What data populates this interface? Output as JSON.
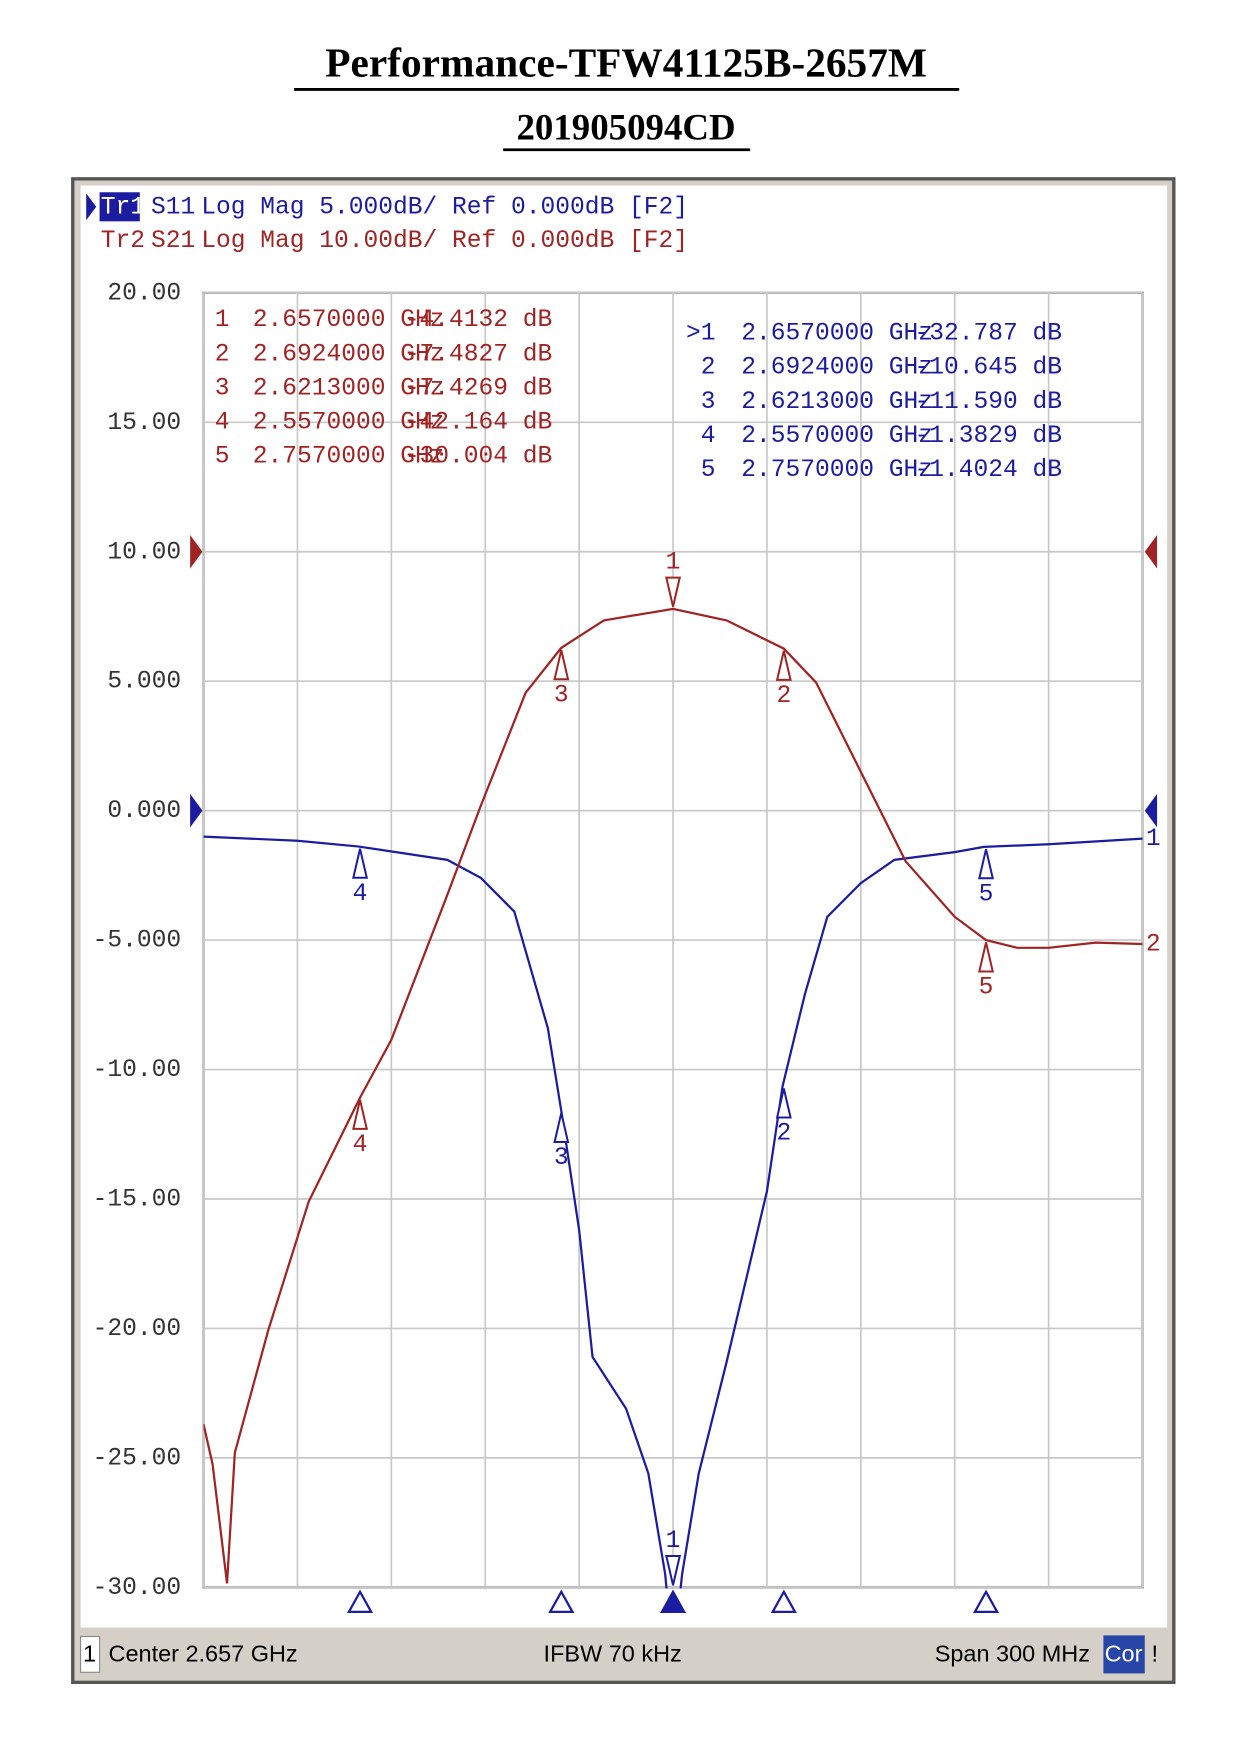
{
  "title": "Performance-TFW41125B-2657M",
  "subtitle": "201905094CD",
  "chart_data": {
    "type": "line",
    "xlim": [
      2.507,
      2.807
    ],
    "xticks": [
      2.507,
      2.537,
      2.567,
      2.597,
      2.627,
      2.657,
      2.687,
      2.717,
      2.747,
      2.777,
      2.807
    ],
    "ylim": [
      -30,
      20
    ],
    "yticks": [
      {
        "value": 20,
        "label": "20.00"
      },
      {
        "value": 15,
        "label": "15.00"
      },
      {
        "value": 10,
        "label": "10.00"
      },
      {
        "value": 5,
        "label": "5.000"
      },
      {
        "value": 0,
        "label": "0.000"
      },
      {
        "value": -5,
        "label": "-5.000"
      },
      {
        "value": -10,
        "label": "-10.00"
      },
      {
        "value": -15,
        "label": "-15.00"
      },
      {
        "value": -20,
        "label": "-20.00"
      },
      {
        "value": -25,
        "label": "-25.00"
      },
      {
        "value": -30,
        "label": "-30.00"
      }
    ],
    "y2lim": [
      -80,
      20
    ],
    "grid": true,
    "series": [
      {
        "tag": "Tr1",
        "name": "S11",
        "format": "Log Mag 5.000dB/ Ref 0.000dB [F2]",
        "color": "#1c1ca0",
        "axis": "y",
        "ref_level": 0,
        "end_label": "1",
        "active": true,
        "x": [
          2.507,
          2.537,
          2.5563,
          2.5849,
          2.5956,
          2.6063,
          2.617,
          2.6213,
          2.627,
          2.6313,
          2.642,
          2.6491,
          2.6545,
          2.657,
          2.6599,
          2.6652,
          2.6741,
          2.687,
          2.692,
          2.6991,
          2.7063,
          2.717,
          2.7277,
          2.747,
          2.7563,
          2.777,
          2.807
        ],
        "values": [
          -1.0,
          -1.16,
          -1.38,
          -1.9,
          -2.6,
          -3.9,
          -8.4,
          -11.59,
          -16.2,
          -21.1,
          -23.1,
          -25.6,
          -29.5,
          -32.787,
          -29.5,
          -25.6,
          -21.3,
          -14.7,
          -10.645,
          -7.1,
          -4.1,
          -2.8,
          -1.9,
          -1.6,
          -1.4,
          -1.3,
          -1.08
        ],
        "markers": {
          "labels": [
            "1",
            "2",
            "3",
            "4",
            "5"
          ],
          "active_label": ">1",
          "x": [
            2.657,
            2.6924,
            2.6213,
            2.557,
            2.757
          ],
          "x_labels": [
            "2.6570000 GHz",
            "2.6924000 GHz",
            "2.6213000 GHz",
            "2.5570000 GHz",
            "2.7570000 GHz"
          ],
          "values": [
            -32.787,
            -10.645,
            -11.59,
            -1.3829,
            -1.4024
          ],
          "value_labels": [
            "-32.787 dB",
            "-10.645 dB",
            "-11.590 dB",
            "-1.3829 dB",
            "-1.4024 dB"
          ]
        }
      },
      {
        "tag": "Tr2",
        "name": "S21",
        "format": "Log Mag 10.00dB/ Ref 0.000dB [F2]",
        "color": "#a02424",
        "axis": "y2",
        "ref_level": 0,
        "end_label": "2",
        "active": false,
        "x": [
          2.507,
          2.5099,
          2.5145,
          2.517,
          2.5277,
          2.5406,
          2.557,
          2.567,
          2.5849,
          2.5956,
          2.6099,
          2.6213,
          2.6349,
          2.657,
          2.6741,
          2.6924,
          2.7027,
          2.717,
          2.7313,
          2.747,
          2.757,
          2.767,
          2.777,
          2.792,
          2.807
        ],
        "values": [
          -67.4,
          -70.5,
          -79.7,
          -69.6,
          -60.1,
          -50.2,
          -42.164,
          -37.7,
          -26.5,
          -19.6,
          -10.9,
          -7.4269,
          -5.3,
          -4.4132,
          -5.3,
          -7.4827,
          -10.1,
          -17.0,
          -23.9,
          -28.2,
          -30.004,
          -30.6,
          -30.6,
          -30.2,
          -30.3
        ],
        "markers": {
          "labels": [
            "1",
            "2",
            "3",
            "4",
            "5"
          ],
          "x": [
            2.657,
            2.6924,
            2.6213,
            2.557,
            2.757
          ],
          "x_labels": [
            "2.6570000 GHz",
            "2.6924000 GHz",
            "2.6213000 GHz",
            "2.5570000 GHz",
            "2.7570000 GHz"
          ],
          "values": [
            -4.4132,
            -7.4827,
            -7.4269,
            -42.164,
            -30.004
          ],
          "value_labels": [
            "-4.4132 dB",
            "-7.4827 dB",
            "-7.4269 dB",
            "-42.164 dB",
            "-30.004 dB"
          ]
        }
      }
    ],
    "status": {
      "channel": "1",
      "center": "Center 2.657 GHz",
      "ifbw": "IFBW 70 kHz",
      "span": "Span 300 MHz",
      "cor": "Cor",
      "flag": "!"
    }
  }
}
